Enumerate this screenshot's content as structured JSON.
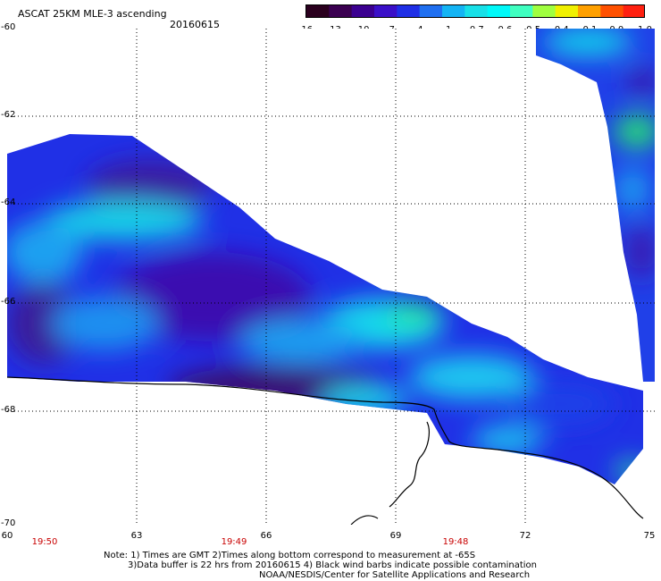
{
  "header": {
    "title": "ASCAT 25KM MLE-3 ascending",
    "date": "20160615"
  },
  "legend": {
    "colors": [
      "#2a001e",
      "#3a0050",
      "#3b0090",
      "#3a10c8",
      "#1f2fe6",
      "#1f6ff0",
      "#14b4f4",
      "#18e0e8",
      "#00f8f8",
      "#40ffc0",
      "#a0ff40",
      "#f0f000",
      "#ffa000",
      "#ff5000",
      "#ff2010"
    ],
    "tick_labels": [
      "-16",
      "-13",
      "-10",
      "-7",
      "-4",
      "-1",
      "-0.7",
      "-0.6",
      "-0.5",
      "-0.4",
      "-0.1",
      "0.0",
      "1.0"
    ]
  },
  "axes": {
    "y_labels": [
      "-60",
      "-62",
      "-64",
      "-66",
      "-68",
      "-70"
    ],
    "x_labels": [
      "60",
      "63",
      "66",
      "69",
      "72",
      "75"
    ],
    "times": [
      "19:50",
      "19:49",
      "19:48"
    ]
  },
  "notes": {
    "line1": "Note: 1) Times are GMT 2)Times along bottom correspond to measurement at -65S",
    "line2": "3)Data buffer is 22 hrs from 20160615 4) Black wind barbs indicate possible contamination",
    "line3": "NOAA/NESDIS/Center for Satellite Applications and Research"
  },
  "colors": {
    "deep_purple": "#3a0a6e",
    "blue": "#1f3fe8",
    "mid_blue": "#1e8cf0",
    "cyan": "#1ed8f0",
    "green": "#28e86e",
    "time_red": "#c80000"
  }
}
